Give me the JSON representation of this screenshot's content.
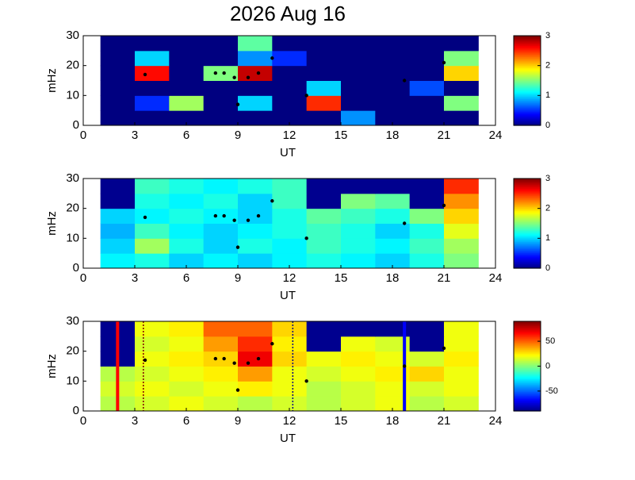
{
  "chart_data": [
    {
      "type": "heatmap",
      "title": "2026 Aug 16",
      "xlabel": "UT",
      "ylabel": "mHz",
      "xlim": [
        0,
        24
      ],
      "xticks": [
        0,
        3,
        6,
        9,
        12,
        15,
        18,
        21,
        24
      ],
      "ylim": [
        0,
        30
      ],
      "yticks": [
        0,
        10,
        20,
        30
      ],
      "x": [
        2,
        4,
        6,
        8,
        10,
        12,
        14,
        16,
        18,
        20,
        22
      ],
      "y": [
        2.5,
        7.5,
        12.5,
        17.5,
        22.5,
        27.5
      ],
      "z": [
        [
          0,
          0,
          0,
          0,
          0,
          0,
          0,
          0.8,
          0,
          0,
          0
        ],
        [
          0,
          0.5,
          1.6,
          0,
          1.0,
          0,
          2.5,
          0,
          0,
          0,
          1.5
        ],
        [
          0,
          0,
          0,
          0,
          0,
          0,
          1.0,
          0,
          0,
          0.6,
          0
        ],
        [
          0,
          2.6,
          0,
          1.5,
          2.8,
          0,
          0,
          0,
          0,
          0,
          2.0
        ],
        [
          0,
          1.0,
          0,
          0,
          0.8,
          0.5,
          0,
          0,
          0,
          0,
          1.5
        ],
        [
          0,
          0,
          0,
          0,
          1.4,
          0,
          0,
          0,
          0,
          0,
          0
        ]
      ],
      "clim": [
        0,
        3
      ],
      "cticks": [
        0,
        1,
        2,
        3
      ],
      "events": {
        "x": [
          3.6,
          7.7,
          8.2,
          8.8,
          9.0,
          9.6,
          10.2,
          11.0,
          13.0,
          18.7,
          21.0
        ],
        "y": [
          17,
          17.5,
          17.5,
          16,
          7,
          16,
          17.5,
          22.5,
          10,
          15,
          21
        ]
      }
    },
    {
      "type": "heatmap",
      "xlabel": "UT",
      "ylabel": "mHz",
      "xlim": [
        0,
        24
      ],
      "xticks": [
        0,
        3,
        6,
        9,
        12,
        15,
        18,
        21,
        24
      ],
      "ylim": [
        0,
        30
      ],
      "yticks": [
        0,
        10,
        20,
        30
      ],
      "x": [
        2,
        4,
        6,
        8,
        10,
        12,
        14,
        16,
        18,
        20,
        22
      ],
      "y": [
        2.5,
        7.5,
        12.5,
        17.5,
        22.5,
        27.5
      ],
      "z": [
        [
          1.1,
          1.2,
          1.0,
          1.1,
          1.0,
          1.1,
          1.2,
          1.1,
          1.0,
          1.2,
          1.5
        ],
        [
          1.0,
          1.6,
          1.2,
          1.0,
          1.2,
          1.1,
          1.3,
          1.2,
          1.1,
          1.3,
          1.6
        ],
        [
          0.9,
          1.3,
          1.1,
          1.0,
          1.1,
          1.2,
          1.3,
          1.2,
          1.0,
          1.2,
          1.8
        ],
        [
          1.0,
          1.1,
          1.2,
          1.1,
          1.0,
          1.2,
          1.4,
          1.3,
          1.2,
          1.5,
          2.0
        ],
        [
          null,
          1.2,
          1.1,
          1.2,
          1.0,
          1.3,
          null,
          1.5,
          1.4,
          null,
          2.2
        ],
        [
          null,
          1.3,
          1.2,
          1.1,
          1.2,
          1.3,
          null,
          null,
          null,
          null,
          2.5
        ]
      ],
      "clim": [
        0,
        3
      ],
      "cticks": [
        0,
        1,
        2,
        3
      ],
      "events": {
        "x": [
          3.6,
          7.7,
          8.2,
          8.8,
          9.0,
          9.6,
          10.2,
          11.0,
          13.0,
          18.7,
          21.0
        ],
        "y": [
          17,
          17.5,
          17.5,
          16,
          7,
          16,
          17.5,
          22.5,
          10,
          15,
          21
        ]
      }
    },
    {
      "type": "heatmap",
      "xlabel": "UT",
      "ylabel": "mHz",
      "xlim": [
        0,
        24
      ],
      "xticks": [
        0,
        3,
        6,
        9,
        12,
        15,
        18,
        21,
        24
      ],
      "ylim": [
        0,
        30
      ],
      "yticks": [
        0,
        10,
        20,
        30
      ],
      "x": [
        2,
        4,
        6,
        8,
        10,
        12,
        14,
        16,
        18,
        20,
        22
      ],
      "y": [
        2.5,
        7.5,
        12.5,
        17.5,
        22.5,
        27.5
      ],
      "z": [
        [
          10,
          15,
          20,
          15,
          10,
          15,
          10,
          15,
          20,
          10,
          15
        ],
        [
          15,
          20,
          15,
          20,
          25,
          20,
          10,
          15,
          20,
          15,
          20
        ],
        [
          10,
          15,
          20,
          25,
          40,
          20,
          15,
          20,
          25,
          30,
          20
        ],
        [
          null,
          20,
          25,
          30,
          70,
          30,
          20,
          25,
          20,
          15,
          25
        ],
        [
          null,
          15,
          20,
          40,
          60,
          25,
          null,
          20,
          15,
          null,
          20
        ],
        [
          null,
          20,
          25,
          50,
          50,
          30,
          null,
          null,
          null,
          null,
          20
        ]
      ],
      "clim": [
        -90,
        90
      ],
      "cticks": [
        -50,
        0,
        50
      ],
      "events": {
        "x": [
          3.6,
          7.7,
          8.2,
          8.8,
          9.0,
          9.6,
          10.2,
          11.0,
          13.0,
          18.7,
          21.0
        ],
        "y": [
          17,
          17.5,
          17.5,
          16,
          7,
          16,
          17.5,
          22.5,
          10,
          15,
          21
        ]
      },
      "lines": [
        {
          "x": 2.0,
          "color": "#ff0000",
          "dashed": false
        },
        {
          "x": 3.5,
          "color": "#800000",
          "dashed": true
        },
        {
          "x": 12.2,
          "color": "#000080",
          "dashed": true
        },
        {
          "x": 18.7,
          "color": "#0000ff",
          "dashed": false
        }
      ]
    }
  ]
}
